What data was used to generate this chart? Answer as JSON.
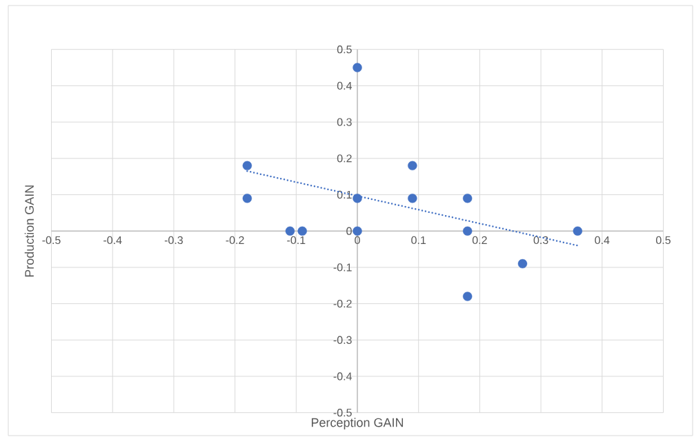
{
  "chart_data": {
    "type": "scatter",
    "xlabel": "Perception GAIN",
    "ylabel": "Production GAIN",
    "xlim": [
      -0.5,
      0.5
    ],
    "ylim": [
      -0.5,
      0.5
    ],
    "xticks": [
      -0.5,
      -0.4,
      -0.3,
      -0.2,
      -0.1,
      0,
      0.1,
      0.2,
      0.3,
      0.4,
      0.5
    ],
    "yticks": [
      -0.5,
      -0.4,
      -0.3,
      -0.2,
      -0.1,
      0,
      0.1,
      0.2,
      0.3,
      0.4,
      0.5
    ],
    "grid": true,
    "series": [
      {
        "color": "#4472c4",
        "marker": "circle",
        "x": [
          0,
          -0.18,
          -0.18,
          -0.11,
          -0.09,
          0,
          0,
          0.09,
          0.09,
          0.18,
          0.18,
          0.27,
          0.36,
          0.18
        ],
        "values": [
          0.45,
          0.18,
          0.09,
          0,
          0,
          0.09,
          0,
          0.18,
          0.09,
          0.09,
          0,
          -0.09,
          0,
          -0.18
        ]
      },
      {
        "type": "line",
        "color": "#4472c4",
        "line_style": "dotted",
        "x": [
          -0.18,
          0.36
        ],
        "values": [
          0.165,
          -0.04
        ]
      }
    ]
  }
}
